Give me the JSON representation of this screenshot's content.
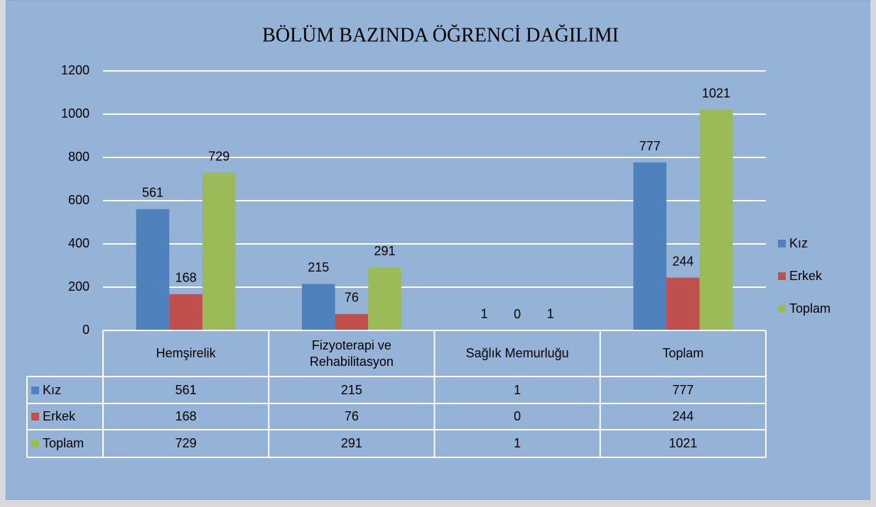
{
  "chart_data": {
    "type": "bar",
    "title": "BÖLÜM BAZINDA ÖĞRENCİ DAĞILIMI",
    "categories": [
      "Hemşirelik",
      "Fizyoterapi ve Rehabilitasyon",
      "Sağlık Memurluğu",
      "Toplam"
    ],
    "series": [
      {
        "name": "Kız",
        "color": "#4f81bd",
        "values": [
          561,
          215,
          1,
          777
        ]
      },
      {
        "name": "Erkek",
        "color": "#c0504d",
        "values": [
          168,
          76,
          0,
          244
        ]
      },
      {
        "name": "Toplam",
        "color": "#9bbb59",
        "values": [
          729,
          291,
          1,
          1021
        ]
      }
    ],
    "ylim": [
      0,
      1200
    ],
    "yticks": [
      0,
      200,
      400,
      600,
      800,
      1000,
      1200
    ],
    "grid": true,
    "legend": "right",
    "data_table": true
  }
}
